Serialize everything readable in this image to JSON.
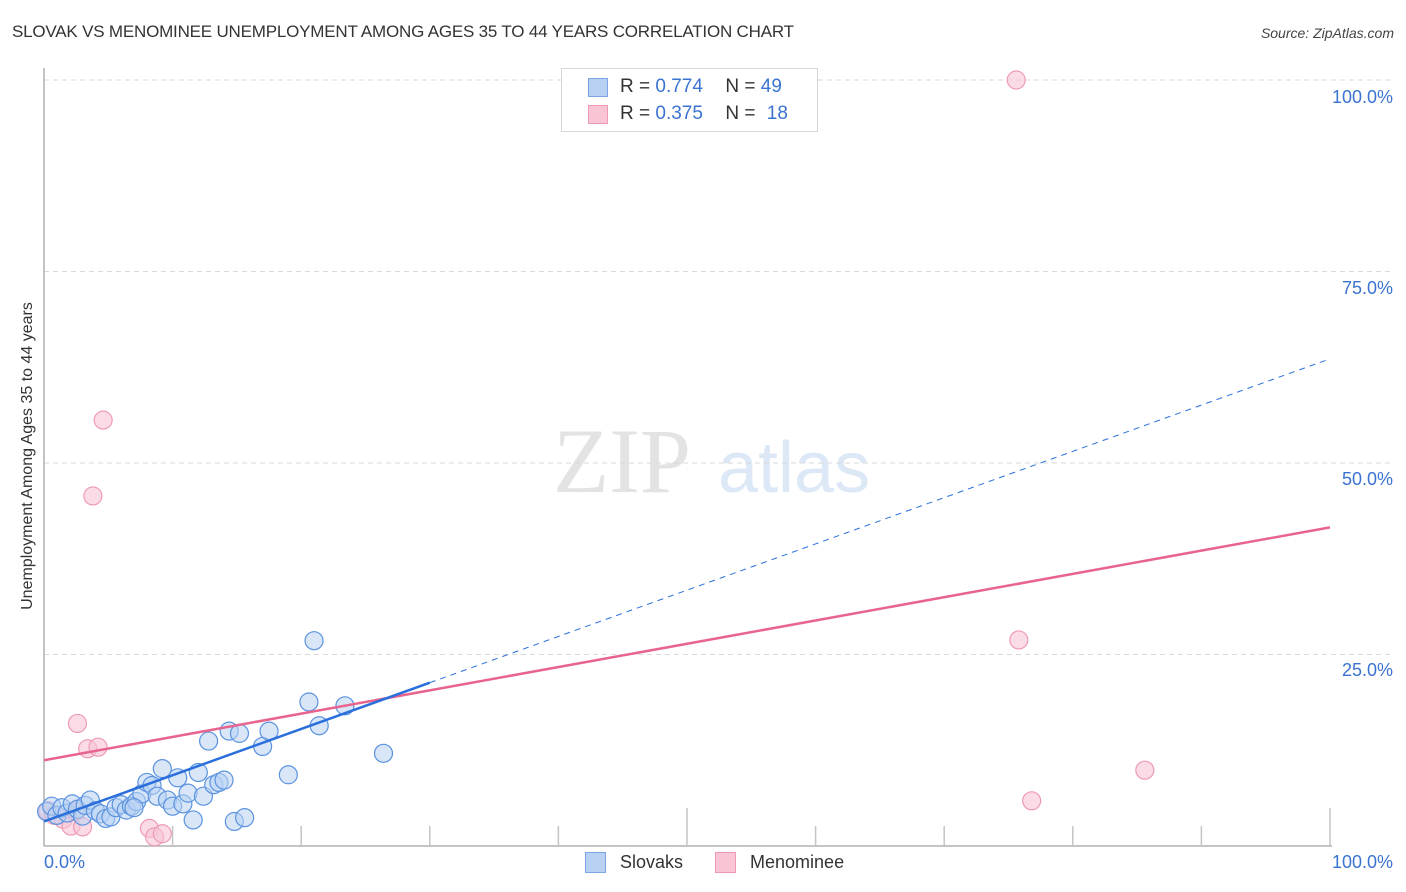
{
  "header": {
    "title": "SLOVAK VS MENOMINEE UNEMPLOYMENT AMONG AGES 35 TO 44 YEARS CORRELATION CHART",
    "source": "Source: ZipAtlas.com"
  },
  "watermark": {
    "zip": "ZIP",
    "atlas": "atlas"
  },
  "legend": {
    "series": [
      {
        "name": "Slovaks",
        "r_label": "R =",
        "r_value": "0.774",
        "n_label": "N =",
        "n_value": "49",
        "fill": "#b8d1f3",
        "stroke": "#7aa6e6"
      },
      {
        "name": "Menominee",
        "r_label": "R =",
        "r_value": "0.375",
        "n_label": "N =",
        "n_value": "18",
        "fill": "#f9c5d5",
        "stroke": "#ee9ab4"
      }
    ]
  },
  "axes": {
    "ylabel": "Unemployment Among Ages 35 to 44 years",
    "y_ticks": [
      "100.0%",
      "75.0%",
      "50.0%",
      "25.0%"
    ],
    "x_ticks": [
      "0.0%",
      "100.0%"
    ]
  },
  "colors": {
    "blue_line": "#2a6fdb",
    "pink_line": "#e8648e",
    "tick_text": "#3b73d1",
    "grid": "#d9d9d9"
  },
  "chart_data": {
    "type": "scatter",
    "title": "SLOVAK VS MENOMINEE UNEMPLOYMENT AMONG AGES 35 TO 44 YEARS CORRELATION CHART",
    "xlabel": "",
    "ylabel": "Unemployment Among Ages 35 to 44 years",
    "xlim": [
      0,
      100
    ],
    "ylim": [
      0,
      100
    ],
    "x_tick_labels": [
      "0.0%",
      "100.0%"
    ],
    "y_tick_labels": [
      "25.0%",
      "50.0%",
      "75.0%",
      "100.0%"
    ],
    "grid": true,
    "legend_position": "top-center",
    "series": [
      {
        "name": "Slovaks",
        "r": 0.774,
        "n": 49,
        "color": "#7aa6e6",
        "trendline": {
          "x": [
            0,
            100
          ],
          "y": [
            3.2,
            63.6
          ],
          "solid_until_x": 30
        },
        "points": [
          [
            0.2,
            4.5
          ],
          [
            0.6,
            5.2
          ],
          [
            1.0,
            4.0
          ],
          [
            1.4,
            5.0
          ],
          [
            1.8,
            4.3
          ],
          [
            2.2,
            5.5
          ],
          [
            2.6,
            4.8
          ],
          [
            3.0,
            3.9
          ],
          [
            3.2,
            5.3
          ],
          [
            3.6,
            6.0
          ],
          [
            4.0,
            4.6
          ],
          [
            4.4,
            4.2
          ],
          [
            4.8,
            3.6
          ],
          [
            5.2,
            3.8
          ],
          [
            5.6,
            5.0
          ],
          [
            6.0,
            5.4
          ],
          [
            6.4,
            4.7
          ],
          [
            6.8,
            5.2
          ],
          [
            7.2,
            5.8
          ],
          [
            7.6,
            6.8
          ],
          [
            8.0,
            8.3
          ],
          [
            8.4,
            7.9
          ],
          [
            8.8,
            6.5
          ],
          [
            9.2,
            10.1
          ],
          [
            9.6,
            6.0
          ],
          [
            10.0,
            5.2
          ],
          [
            10.4,
            8.9
          ],
          [
            10.8,
            5.5
          ],
          [
            11.2,
            6.9
          ],
          [
            11.6,
            3.4
          ],
          [
            12.0,
            9.6
          ],
          [
            12.4,
            6.5
          ],
          [
            12.8,
            13.7
          ],
          [
            13.2,
            8.0
          ],
          [
            13.6,
            8.3
          ],
          [
            14.0,
            8.6
          ],
          [
            14.4,
            15.0
          ],
          [
            14.8,
            3.2
          ],
          [
            15.2,
            14.7
          ],
          [
            15.6,
            3.7
          ],
          [
            17.0,
            13.0
          ],
          [
            17.5,
            15.0
          ],
          [
            19.0,
            9.3
          ],
          [
            20.6,
            18.8
          ],
          [
            21.0,
            26.8
          ],
          [
            21.4,
            15.7
          ],
          [
            23.4,
            18.3
          ],
          [
            26.4,
            12.1
          ],
          [
            7.0,
            5.0
          ]
        ]
      },
      {
        "name": "Menominee",
        "r": 0.375,
        "n": 18,
        "color": "#ee9ab4",
        "trendline": {
          "x": [
            0,
            100
          ],
          "y": [
            11.2,
            41.6
          ]
        },
        "points": [
          [
            0.3,
            4.6
          ],
          [
            0.8,
            4.0
          ],
          [
            1.5,
            3.5
          ],
          [
            2.1,
            2.6
          ],
          [
            2.5,
            4.5
          ],
          [
            2.6,
            16.0
          ],
          [
            3.0,
            2.5
          ],
          [
            3.4,
            12.7
          ],
          [
            3.8,
            45.7
          ],
          [
            4.2,
            12.9
          ],
          [
            4.6,
            55.6
          ],
          [
            8.2,
            2.3
          ],
          [
            8.6,
            1.2
          ],
          [
            9.2,
            1.6
          ],
          [
            75.6,
            100.0
          ],
          [
            75.8,
            26.9
          ],
          [
            76.8,
            5.9
          ],
          [
            85.6,
            9.9
          ]
        ]
      }
    ]
  }
}
